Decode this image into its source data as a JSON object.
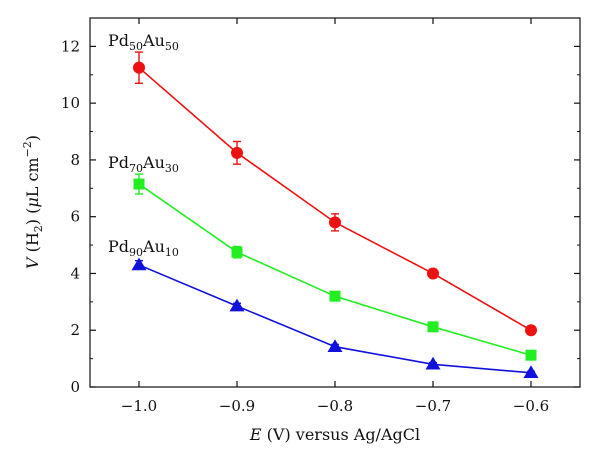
{
  "chart_data": {
    "type": "line",
    "xlabel": {
      "prefix": "E",
      "rest": " (V) versus Ag/AgCl"
    },
    "ylabel": {
      "v": "V",
      "h": " (H",
      "two": "2",
      "close": ") (",
      "mu": "μ",
      "unit": "L cm",
      "exp": "−2",
      "end": ")"
    },
    "xlim": [
      -1.05,
      -0.55
    ],
    "ylim": [
      0,
      13
    ],
    "x": [
      -1.0,
      -0.9,
      -0.8,
      -0.7,
      -0.6
    ],
    "xticks": [
      -1.0,
      -0.9,
      -0.8,
      -0.7,
      -0.6
    ],
    "xtick_labels": [
      "−1.0",
      "−0.9",
      "−0.8",
      "−0.7",
      "−0.6"
    ],
    "yticks": [
      0,
      2,
      4,
      6,
      8,
      10,
      12
    ],
    "ytick_labels": [
      "0",
      "2",
      "4",
      "6",
      "8",
      "10",
      "12"
    ],
    "grid": false,
    "series": [
      {
        "name": "Pd50Au50",
        "label_parts": [
          "Pd",
          "50",
          "Au",
          "50"
        ],
        "color": "#ee1111",
        "marker": "circle",
        "values": [
          11.25,
          8.25,
          5.8,
          4.0,
          2.0
        ],
        "errors": [
          0.55,
          0.4,
          0.3,
          0.15,
          0.1
        ]
      },
      {
        "name": "Pd70Au30",
        "label_parts": [
          "Pd",
          "70",
          "Au",
          "30"
        ],
        "color": "#22ee22",
        "marker": "square",
        "values": [
          7.15,
          4.75,
          3.2,
          2.12,
          1.12
        ],
        "errors": [
          0.35,
          0.2,
          0.1,
          0.08,
          0.06
        ]
      },
      {
        "name": "Pd90Au10",
        "label_parts": [
          "Pd",
          "90",
          "Au",
          "10"
        ],
        "color": "#1111dd",
        "marker": "triangle",
        "values": [
          4.3,
          2.85,
          1.42,
          0.8,
          0.5
        ],
        "errors": [
          0.15,
          0.1,
          0.08,
          0.06,
          0.05
        ]
      }
    ]
  }
}
